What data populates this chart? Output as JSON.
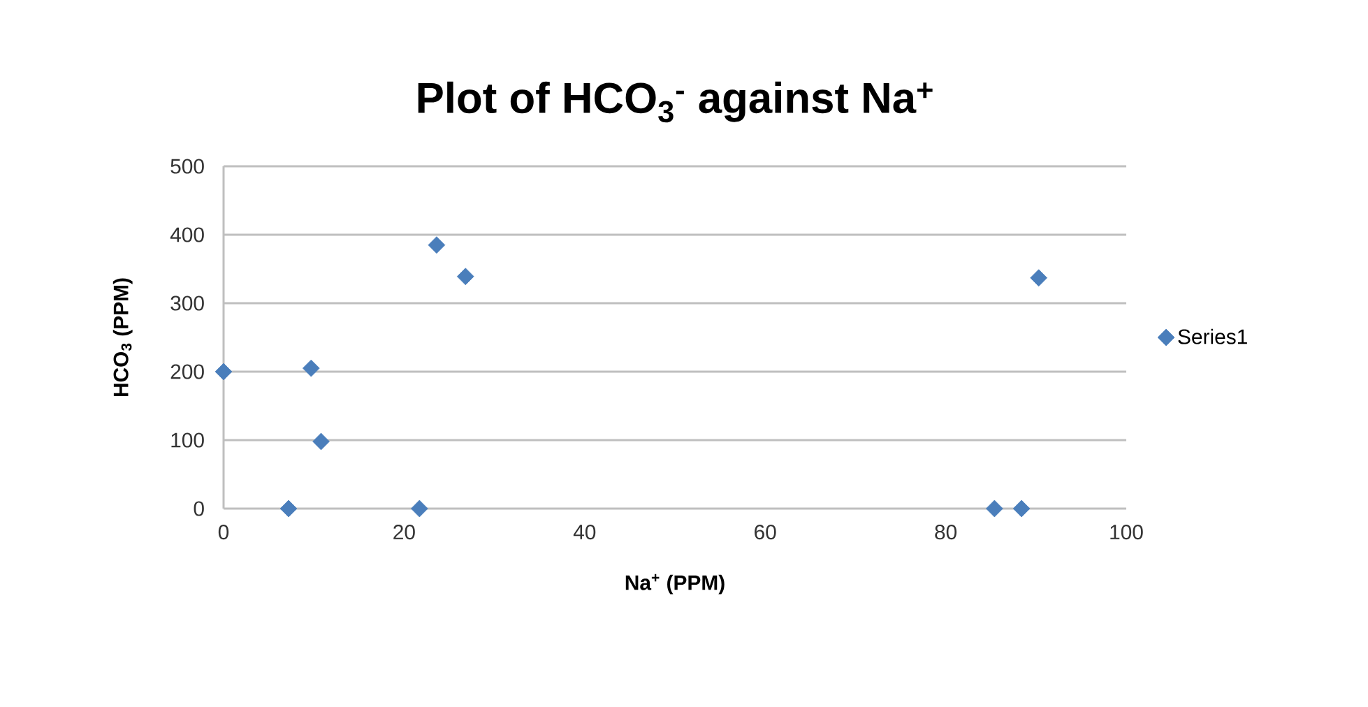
{
  "chart_data": {
    "type": "scatter",
    "title": "Plot of HCO$_{3}$$^{-}$ against Na$^{+}$",
    "xlabel": "Na$^{+}$ (PPM)",
    "ylabel": "HCO$_{3}$ (PPM)",
    "x": [
      0,
      7.2,
      9.7,
      10.8,
      21.7,
      23.6,
      26.8,
      85.4,
      88.4,
      90.3
    ],
    "series": [
      {
        "name": "Series1",
        "color": "#4a7ebb",
        "values": [
          200,
          0,
          205,
          98,
          0,
          385,
          339,
          0,
          0,
          337
        ]
      }
    ],
    "xlim": [
      0,
      100
    ],
    "xticks": [
      0,
      20,
      40,
      60,
      80,
      100
    ],
    "ylim": [
      0,
      500
    ],
    "yticks": [
      0,
      100,
      200,
      300,
      400,
      500
    ],
    "grid": "y",
    "legend": "right",
    "marker": "diamond"
  }
}
